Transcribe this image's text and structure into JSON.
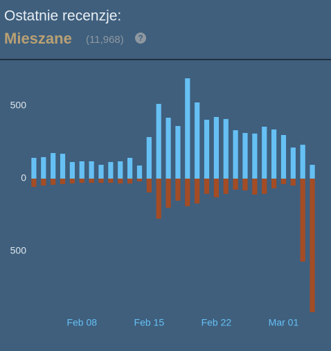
{
  "header": {
    "title": "Ostatnie recenzje:",
    "summary": "Mieszane",
    "count": "(11,968)",
    "help": "?"
  },
  "chart_data": {
    "type": "bar",
    "categories": [
      null,
      null,
      null,
      null,
      null,
      "Feb 08",
      null,
      null,
      null,
      null,
      null,
      null,
      "Feb 15",
      null,
      null,
      null,
      null,
      null,
      null,
      "Feb 22",
      null,
      null,
      null,
      null,
      null,
      null,
      "Mar 01",
      null,
      null,
      null
    ],
    "series": [
      {
        "color": "#66c0f4",
        "values": [
          143,
          148,
          176,
          171,
          114,
          119,
          119,
          95,
          114,
          119,
          143,
          90,
          286,
          514,
          419,
          362,
          690,
          524,
          405,
          424,
          410,
          333,
          314,
          310,
          357,
          338,
          300,
          214,
          233,
          95
        ]
      },
      {
        "color": "#a34c25",
        "values": [
          -57,
          -48,
          -43,
          -38,
          -33,
          -29,
          -29,
          -29,
          -29,
          -33,
          -33,
          -19,
          -95,
          -276,
          -200,
          -152,
          -190,
          -171,
          -105,
          -129,
          -105,
          -76,
          -81,
          -110,
          -105,
          -67,
          -38,
          -48,
          -571,
          -919
        ]
      }
    ],
    "ylim": [
      -940,
      750
    ],
    "yticks": [
      {
        "value": -500,
        "label": "500"
      },
      0,
      500
    ]
  }
}
